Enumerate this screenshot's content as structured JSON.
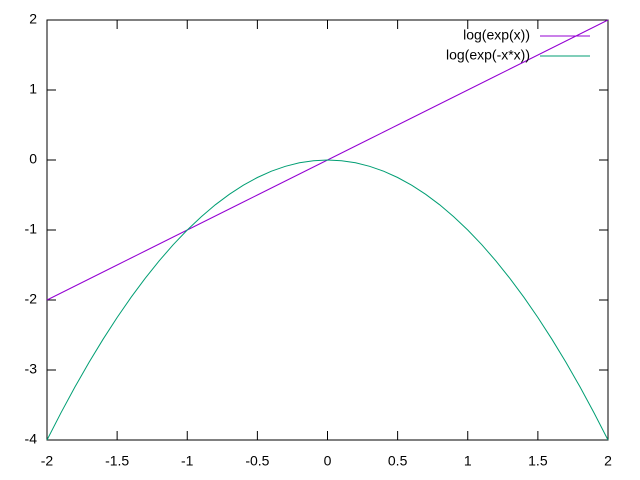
{
  "chart_data": {
    "type": "line",
    "x": [
      -2,
      -1.9,
      -1.8,
      -1.7,
      -1.6,
      -1.5,
      -1.4,
      -1.3,
      -1.2,
      -1.1,
      -1,
      -0.9,
      -0.8,
      -0.7,
      -0.6,
      -0.5,
      -0.4,
      -0.3,
      -0.2,
      -0.1,
      0,
      0.1,
      0.2,
      0.3,
      0.4,
      0.5,
      0.6,
      0.7,
      0.8,
      0.9,
      1,
      1.1,
      1.2,
      1.3,
      1.4,
      1.5,
      1.6,
      1.7,
      1.8,
      1.9,
      2
    ],
    "series": [
      {
        "name": "log(exp(x))",
        "color": "#9400d3",
        "values": [
          -2,
          -1.9,
          -1.8,
          -1.7,
          -1.6,
          -1.5,
          -1.4,
          -1.3,
          -1.2,
          -1.1,
          -1,
          -0.9,
          -0.8,
          -0.7,
          -0.6,
          -0.5,
          -0.4,
          -0.3,
          -0.2,
          -0.1,
          0,
          0.1,
          0.2,
          0.3,
          0.4,
          0.5,
          0.6,
          0.7,
          0.8,
          0.9,
          1,
          1.1,
          1.2,
          1.3,
          1.4,
          1.5,
          1.6,
          1.7,
          1.8,
          1.9,
          2
        ]
      },
      {
        "name": "log(exp(-x*x))",
        "color": "#009e73",
        "values": [
          -4,
          -3.61,
          -3.24,
          -2.89,
          -2.56,
          -2.25,
          -1.96,
          -1.69,
          -1.44,
          -1.21,
          -1,
          -0.81,
          -0.64,
          -0.49,
          -0.36,
          -0.25,
          -0.16,
          -0.09,
          -0.04,
          -0.01,
          0,
          -0.01,
          -0.04,
          -0.09,
          -0.16,
          -0.25,
          -0.36,
          -0.49,
          -0.64,
          -0.81,
          -1,
          -1.21,
          -1.44,
          -1.69,
          -1.96,
          -2.25,
          -2.56,
          -2.89,
          -3.24,
          -3.61,
          -4
        ]
      }
    ],
    "xlim": [
      -2,
      2
    ],
    "xticks": [
      -2,
      -1.5,
      -1,
      -0.5,
      0,
      0.5,
      1,
      1.5,
      2
    ],
    "ylim": [
      -4,
      2
    ],
    "yticks": [
      -4,
      -3,
      -2,
      -1,
      0,
      1,
      2
    ],
    "legend": "upper right"
  }
}
